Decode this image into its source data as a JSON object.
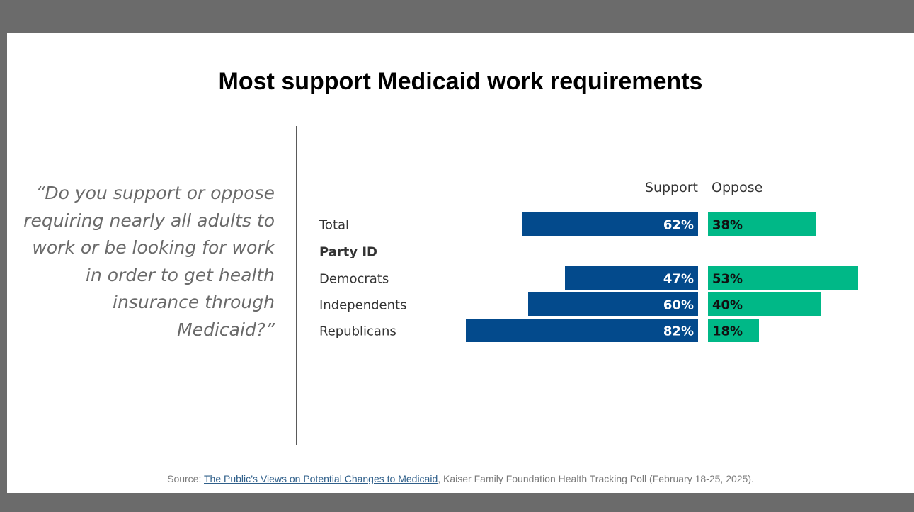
{
  "title": "Most support Medicaid work requirements",
  "question": "“Do you support or oppose requiring nearly all adults to work or be looking for work in order to get health insurance through Medicaid?”",
  "source": {
    "prefix": "Source: ",
    "link_text": "The Public’s Views on Potential Changes to Medicaid",
    "suffix": ", Kaiser Family Foundation Health Tracking Poll (February 18-25, 2025)."
  },
  "colors": {
    "support": "#034a8c",
    "oppose": "#00b887",
    "divider": "#5a5a5a"
  },
  "chart_data": {
    "type": "bar",
    "orientation": "horizontal-diverging",
    "title": "",
    "series": [
      {
        "name": "Support",
        "values": [
          62,
          null,
          47,
          60,
          82
        ]
      },
      {
        "name": "Oppose",
        "values": [
          38,
          null,
          53,
          40,
          18
        ]
      }
    ],
    "categories": [
      "Total",
      "Party ID",
      "Democrats",
      "Independents",
      "Republicans"
    ],
    "category_styles": [
      "normal",
      "bold-heading",
      "normal",
      "normal",
      "normal"
    ],
    "value_labels": {
      "support": [
        "62%",
        "",
        "47%",
        "60%",
        "82%"
      ],
      "oppose": [
        "38%",
        "",
        "53%",
        "40%",
        "18%"
      ]
    },
    "legend": "top, above bars"
  }
}
